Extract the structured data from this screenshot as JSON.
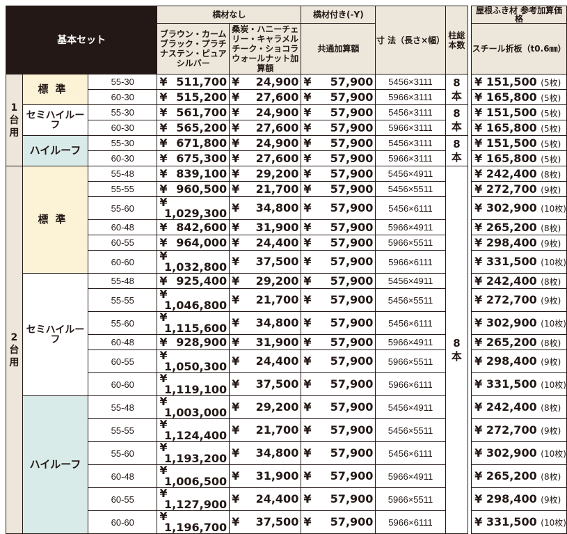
{
  "header": {
    "title": "基本セット",
    "no_beam": "横材なし",
    "with_beam": "横材付き(-Y)",
    "color_a": "ブラウン・カームブラック・プラチナステン・ピュアシルバー",
    "color_b": "桑炭・ハニーチェリー・キャラメルチーク・ショコラウォールナット加算額",
    "common_add": "共通加算額",
    "size": "寸 法（長さ×幅）",
    "posts": "柱総本数",
    "roof_title": "屋根ふき材 参考加算価格",
    "roof_sub": "スチール折板（t0.6㎜）"
  },
  "group1": {
    "label": "1台用",
    "count": "8本",
    "types": [
      {
        "name": "標準",
        "style": "std",
        "rows": [
          {
            "size": "55-30",
            "price": "511,700",
            "color_add": "24,900",
            "common": "57,900",
            "dim": "5456×3111",
            "roof": "151,500",
            "sheets": "(5枚)"
          },
          {
            "size": "60-30",
            "price": "515,200",
            "color_add": "27,600",
            "common": "57,900",
            "dim": "5966×3111",
            "roof": "165,800",
            "sheets": "(5枚)"
          }
        ]
      },
      {
        "name": "セミハイルーフ",
        "style": "semi",
        "rows": [
          {
            "size": "55-30",
            "price": "561,700",
            "color_add": "24,900",
            "common": "57,900",
            "dim": "5456×3111",
            "roof": "151,500",
            "sheets": "(5枚)"
          },
          {
            "size": "60-30",
            "price": "565,200",
            "color_add": "27,600",
            "common": "57,900",
            "dim": "5966×3111",
            "roof": "165,800",
            "sheets": "(5枚)"
          }
        ]
      },
      {
        "name": "ハイルーフ",
        "style": "high",
        "rows": [
          {
            "size": "55-30",
            "price": "671,800",
            "color_add": "24,900",
            "common": "57,900",
            "dim": "5456×3111",
            "roof": "151,500",
            "sheets": "(5枚)"
          },
          {
            "size": "60-30",
            "price": "675,300",
            "color_add": "27,600",
            "common": "57,900",
            "dim": "5966×3111",
            "roof": "165,800",
            "sheets": "(5枚)"
          }
        ]
      }
    ]
  },
  "group2": {
    "label": "2台用",
    "count": "8本",
    "types": [
      {
        "name": "標準",
        "style": "std",
        "rows": [
          {
            "size": "55-48",
            "price": "839,100",
            "color_add": "29,200",
            "common": "57,900",
            "dim": "5456×4911",
            "roof": "242,400",
            "sheets": "(8枚)"
          },
          {
            "size": "55-55",
            "price": "960,500",
            "color_add": "21,700",
            "common": "57,900",
            "dim": "5456×5511",
            "roof": "272,700",
            "sheets": "(9枚)"
          },
          {
            "size": "55-60",
            "price": "1,029,300",
            "color_add": "34,800",
            "common": "57,900",
            "dim": "5456×6111",
            "roof": "302,900",
            "sheets": "(10枚)"
          },
          {
            "size": "60-48",
            "price": "842,600",
            "color_add": "31,900",
            "common": "57,900",
            "dim": "5966×4911",
            "roof": "265,200",
            "sheets": "(8枚)"
          },
          {
            "size": "60-55",
            "price": "964,000",
            "color_add": "24,400",
            "common": "57,900",
            "dim": "5966×5511",
            "roof": "298,400",
            "sheets": "(9枚)"
          },
          {
            "size": "60-60",
            "price": "1,032,800",
            "color_add": "37,500",
            "common": "57,900",
            "dim": "5966×6111",
            "roof": "331,500",
            "sheets": "(10枚)"
          }
        ]
      },
      {
        "name": "セミハイルーフ",
        "style": "semi",
        "rows": [
          {
            "size": "55-48",
            "price": "925,400",
            "color_add": "29,200",
            "common": "57,900",
            "dim": "5456×4911",
            "roof": "242,400",
            "sheets": "(8枚)"
          },
          {
            "size": "55-55",
            "price": "1,046,800",
            "color_add": "21,700",
            "common": "57,900",
            "dim": "5456×5511",
            "roof": "272,700",
            "sheets": "(9枚)"
          },
          {
            "size": "55-60",
            "price": "1,115,600",
            "color_add": "34,800",
            "common": "57,900",
            "dim": "5456×6111",
            "roof": "302,900",
            "sheets": "(10枚)"
          },
          {
            "size": "60-48",
            "price": "928,900",
            "color_add": "31,900",
            "common": "57,900",
            "dim": "5966×4911",
            "roof": "265,200",
            "sheets": "(8枚)"
          },
          {
            "size": "60-55",
            "price": "1,050,300",
            "color_add": "24,400",
            "common": "57,900",
            "dim": "5966×5511",
            "roof": "298,400",
            "sheets": "(9枚)"
          },
          {
            "size": "60-60",
            "price": "1,119,100",
            "color_add": "37,500",
            "common": "57,900",
            "dim": "5966×6111",
            "roof": "331,500",
            "sheets": "(10枚)"
          }
        ]
      },
      {
        "name": "ハイルーフ",
        "style": "high",
        "rows": [
          {
            "size": "55-48",
            "price": "1,003,000",
            "color_add": "29,200",
            "common": "57,900",
            "dim": "5456×4911",
            "roof": "242,400",
            "sheets": "(8枚)"
          },
          {
            "size": "55-55",
            "price": "1,124,400",
            "color_add": "21,700",
            "common": "57,900",
            "dim": "5456×5511",
            "roof": "272,700",
            "sheets": "(9枚)"
          },
          {
            "size": "55-60",
            "price": "1,193,200",
            "color_add": "34,800",
            "common": "57,900",
            "dim": "5456×6111",
            "roof": "302,900",
            "sheets": "(10枚)"
          },
          {
            "size": "60-48",
            "price": "1,006,500",
            "color_add": "31,900",
            "common": "57,900",
            "dim": "5966×4911",
            "roof": "265,200",
            "sheets": "(8枚)"
          },
          {
            "size": "60-55",
            "price": "1,127,900",
            "color_add": "24,400",
            "common": "57,900",
            "dim": "5966×5511",
            "roof": "298,400",
            "sheets": "(9枚)"
          },
          {
            "size": "60-60",
            "price": "1,196,700",
            "color_add": "37,500",
            "common": "57,900",
            "dim": "5966×6111",
            "roof": "331,500",
            "sheets": "(10枚)"
          }
        ]
      }
    ]
  },
  "colors": {
    "header_bg": "#ede7db",
    "title_bg": "#231815",
    "standard_bg": "#fcf3d6",
    "highroof_bg": "#d8ebe9"
  }
}
